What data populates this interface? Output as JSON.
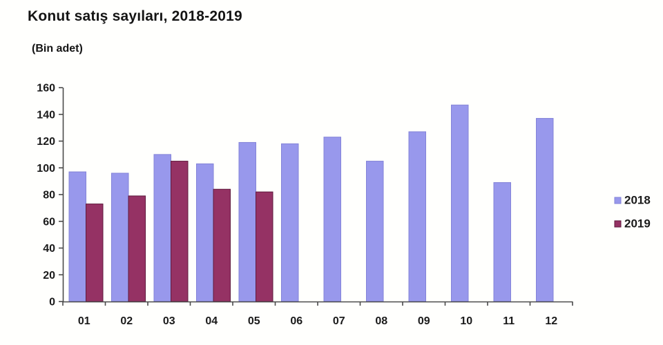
{
  "header": {
    "title": "Konut satış sayıları, 2018-2019",
    "subtitle": "(Bin adet)"
  },
  "chart_data": {
    "type": "bar",
    "title": "Konut satış sayıları, 2018-2019",
    "unit_label": "(Bin adet)",
    "categories": [
      "01",
      "02",
      "03",
      "04",
      "05",
      "06",
      "07",
      "08",
      "09",
      "10",
      "11",
      "12"
    ],
    "series": [
      {
        "name": "2018",
        "color": "#9898ec",
        "border": "#8383d8",
        "values": [
          97,
          96,
          110,
          103,
          119,
          118,
          123,
          105,
          127,
          147,
          89,
          137
        ]
      },
      {
        "name": "2019",
        "color": "#953264",
        "border": "#5e1a3d",
        "values": [
          73,
          79,
          105,
          84,
          82,
          null,
          null,
          null,
          null,
          null,
          null,
          null
        ]
      }
    ],
    "xlabel": "",
    "ylabel": "(Bin adet)",
    "ylim": [
      0,
      160
    ],
    "yticks": [
      0,
      20,
      40,
      60,
      80,
      100,
      120,
      140,
      160
    ],
    "grid": false,
    "legend_position": "right",
    "axis_color": "#4a4a4a"
  }
}
